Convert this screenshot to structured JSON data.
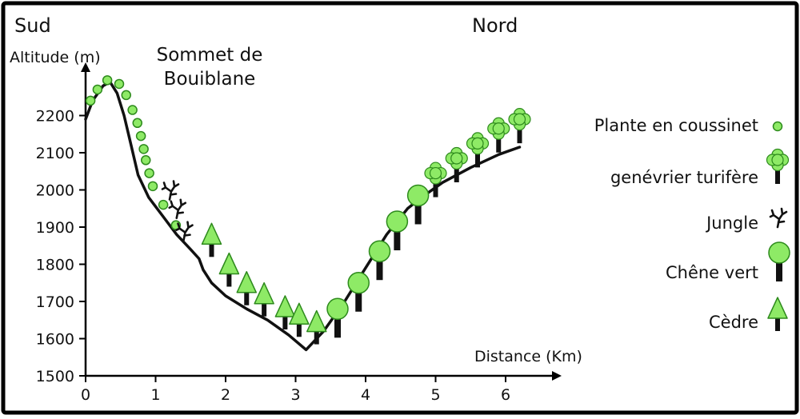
{
  "chart_data": {
    "type": "line",
    "labels": {
      "south": "Sud",
      "north": "Nord",
      "summit": [
        "Sommet de",
        "Bouiblane"
      ]
    },
    "ylabel": "Altitude (m)",
    "xlabel": "Distance (Km)",
    "xlim": [
      0,
      6.5
    ],
    "ylim": [
      1500,
      2300
    ],
    "x_ticks": [
      0,
      1,
      2,
      3,
      4,
      5,
      6
    ],
    "y_ticks": [
      1500,
      1600,
      1700,
      1800,
      1900,
      2000,
      2100,
      2200
    ],
    "profile": [
      {
        "x": 0.0,
        "y": 2190
      },
      {
        "x": 0.1,
        "y": 2240
      },
      {
        "x": 0.25,
        "y": 2280
      },
      {
        "x": 0.35,
        "y": 2290
      },
      {
        "x": 0.45,
        "y": 2260
      },
      {
        "x": 0.55,
        "y": 2200
      },
      {
        "x": 0.65,
        "y": 2120
      },
      {
        "x": 0.75,
        "y": 2040
      },
      {
        "x": 0.9,
        "y": 1980
      },
      {
        "x": 1.1,
        "y": 1930
      },
      {
        "x": 1.3,
        "y": 1880
      },
      {
        "x": 1.5,
        "y": 1840
      },
      {
        "x": 1.62,
        "y": 1815
      },
      {
        "x": 1.68,
        "y": 1785
      },
      {
        "x": 1.8,
        "y": 1750
      },
      {
        "x": 2.0,
        "y": 1715
      },
      {
        "x": 2.3,
        "y": 1680
      },
      {
        "x": 2.6,
        "y": 1650
      },
      {
        "x": 2.9,
        "y": 1610
      },
      {
        "x": 3.15,
        "y": 1570
      },
      {
        "x": 3.4,
        "y": 1620
      },
      {
        "x": 3.7,
        "y": 1700
      },
      {
        "x": 4.0,
        "y": 1790
      },
      {
        "x": 4.3,
        "y": 1880
      },
      {
        "x": 4.6,
        "y": 1950
      },
      {
        "x": 4.8,
        "y": 1980
      },
      {
        "x": 5.1,
        "y": 2020
      },
      {
        "x": 5.5,
        "y": 2060
      },
      {
        "x": 5.9,
        "y": 2095
      },
      {
        "x": 6.2,
        "y": 2115
      }
    ],
    "legend": [
      {
        "key": "coussinet",
        "label": "Plante en coussinet"
      },
      {
        "key": "genevrier",
        "label": "genévrier turifère"
      },
      {
        "key": "jungle",
        "label": "Jungle"
      },
      {
        "key": "chene",
        "label": "Chêne vert"
      },
      {
        "key": "cedre",
        "label": "Cèdre"
      }
    ],
    "vegetation": {
      "coussinet": [
        {
          "x": 0.07,
          "y": 2240
        },
        {
          "x": 0.17,
          "y": 2270
        },
        {
          "x": 0.31,
          "y": 2295
        },
        {
          "x": 0.48,
          "y": 2285
        },
        {
          "x": 0.58,
          "y": 2255
        },
        {
          "x": 0.67,
          "y": 2215
        },
        {
          "x": 0.74,
          "y": 2180
        },
        {
          "x": 0.79,
          "y": 2145
        },
        {
          "x": 0.83,
          "y": 2110
        },
        {
          "x": 0.86,
          "y": 2080
        },
        {
          "x": 0.91,
          "y": 2045
        },
        {
          "x": 0.96,
          "y": 2010
        },
        {
          "x": 1.11,
          "y": 1960
        },
        {
          "x": 1.29,
          "y": 1905
        }
      ],
      "jungle": [
        {
          "x": 1.2,
          "y": 2000
        },
        {
          "x": 1.3,
          "y": 1950
        },
        {
          "x": 1.4,
          "y": 1890
        }
      ],
      "cedre": [
        {
          "x": 1.8,
          "y": 1880
        },
        {
          "x": 2.05,
          "y": 1800
        },
        {
          "x": 2.3,
          "y": 1750
        },
        {
          "x": 2.55,
          "y": 1720
        },
        {
          "x": 2.85,
          "y": 1685
        },
        {
          "x": 3.05,
          "y": 1665
        },
        {
          "x": 3.3,
          "y": 1645
        }
      ],
      "chene": [
        {
          "x": 3.6,
          "y": 1680
        },
        {
          "x": 3.9,
          "y": 1750
        },
        {
          "x": 4.2,
          "y": 1835
        },
        {
          "x": 4.45,
          "y": 1915
        },
        {
          "x": 4.75,
          "y": 1985
        }
      ],
      "genevrier": [
        {
          "x": 5.0,
          "y": 2045
        },
        {
          "x": 5.3,
          "y": 2085
        },
        {
          "x": 5.6,
          "y": 2125
        },
        {
          "x": 5.9,
          "y": 2165
        },
        {
          "x": 6.2,
          "y": 2190
        }
      ]
    },
    "colors": {
      "frame": "#000000",
      "profile": "#111111",
      "green_fill": "#8eea66",
      "green_stroke": "#2d8a1c",
      "trunk": "#111111"
    }
  }
}
